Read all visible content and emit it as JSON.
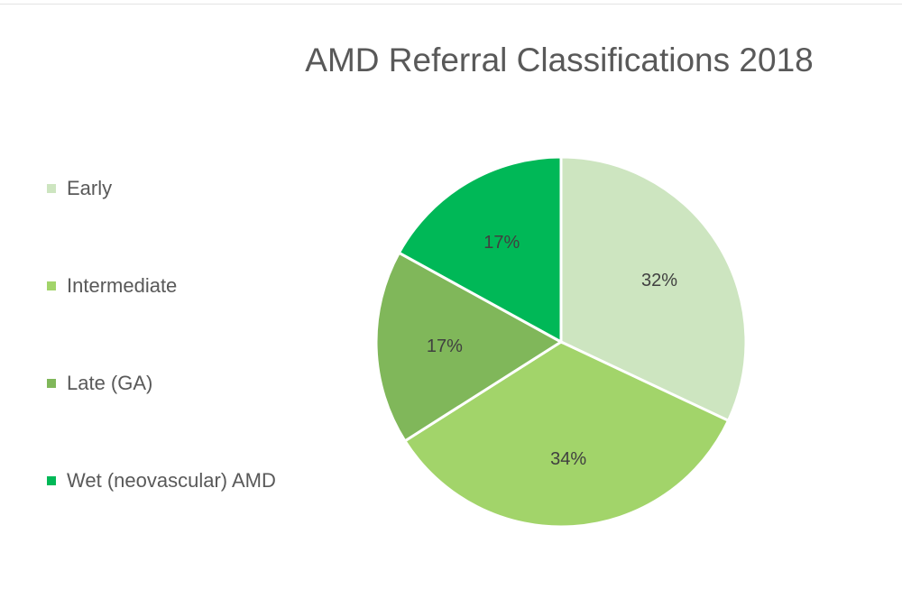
{
  "chart_data": {
    "type": "pie",
    "title": "AMD Referral Classifications 2018",
    "categories": [
      "Early",
      "Intermediate",
      "Late (GA)",
      "Wet (neovascular) AMD"
    ],
    "values": [
      32,
      34,
      17,
      17
    ],
    "data_labels": [
      "32%",
      "34%",
      "17%",
      "17%"
    ],
    "colors": [
      "#cde5c0",
      "#a2d46a",
      "#80b75a",
      "#00b857"
    ],
    "start_angle_deg": 0,
    "direction": "clockwise",
    "legend_position": "left"
  }
}
